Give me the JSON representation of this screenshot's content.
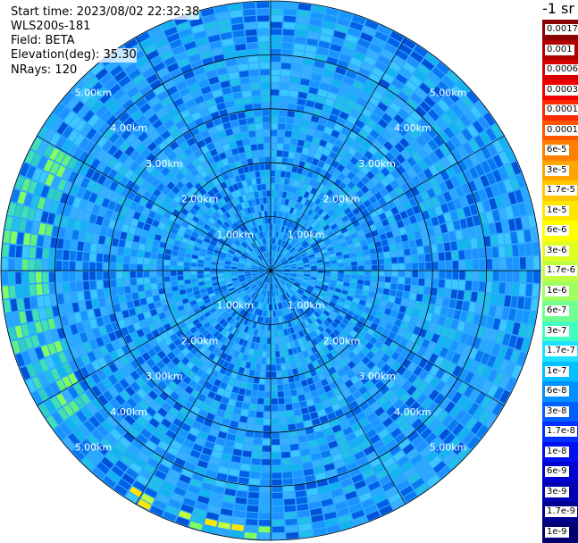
{
  "header": {
    "start_time": "Start time: 2023/08/02 22:32:38",
    "instrument": "WLS200s-181",
    "field": "Field: BETA",
    "elevation": "Elevation(deg): 35.30",
    "nrays": "NRays: 120"
  },
  "chart_data": {
    "type": "heatmap",
    "projection": "polar-ppi",
    "n_rays": 120,
    "max_range_km": 5.0,
    "range_rings_km": [
      1.0,
      2.0,
      3.0,
      4.0,
      5.0
    ],
    "ring_labels": [
      "1.00km",
      "2.00km",
      "3.00km",
      "4.00km",
      "5.00km"
    ],
    "spokes_deg": [
      0,
      30,
      60,
      90,
      120,
      150,
      180,
      210,
      240,
      270,
      300,
      330
    ],
    "grid": true,
    "colorbar": {
      "title": "-1 sr",
      "levels": [
        "0.0017",
        "0.001",
        "0.0006",
        "0.0003",
        "0.00017",
        "0.0001",
        "6e-5",
        "3e-5",
        "1.7e-5",
        "1e-5",
        "6e-6",
        "3e-6",
        "1.7e-6",
        "1e-6",
        "6e-7",
        "3e-7",
        "1.7e-7",
        "1e-7",
        "6e-8",
        "3e-8",
        "1.7e-8",
        "1e-8",
        "6e-9",
        "3e-9",
        "1.7e-9",
        "1e-9"
      ],
      "colors": [
        "#8b0000",
        "#b00000",
        "#d80000",
        "#f00000",
        "#ff2a00",
        "#ff5500",
        "#ff7f00",
        "#ffa500",
        "#ffc800",
        "#ffe600",
        "#ffff00",
        "#e0ff20",
        "#c0ff40",
        "#a0ff60",
        "#70ff90",
        "#40ffc0",
        "#20e0ff",
        "#00c0ff",
        "#0090ff",
        "#0060ff",
        "#0030ff",
        "#0010f0",
        "#0000d0",
        "#0000b0",
        "#000090",
        "#000070"
      ]
    }
  }
}
